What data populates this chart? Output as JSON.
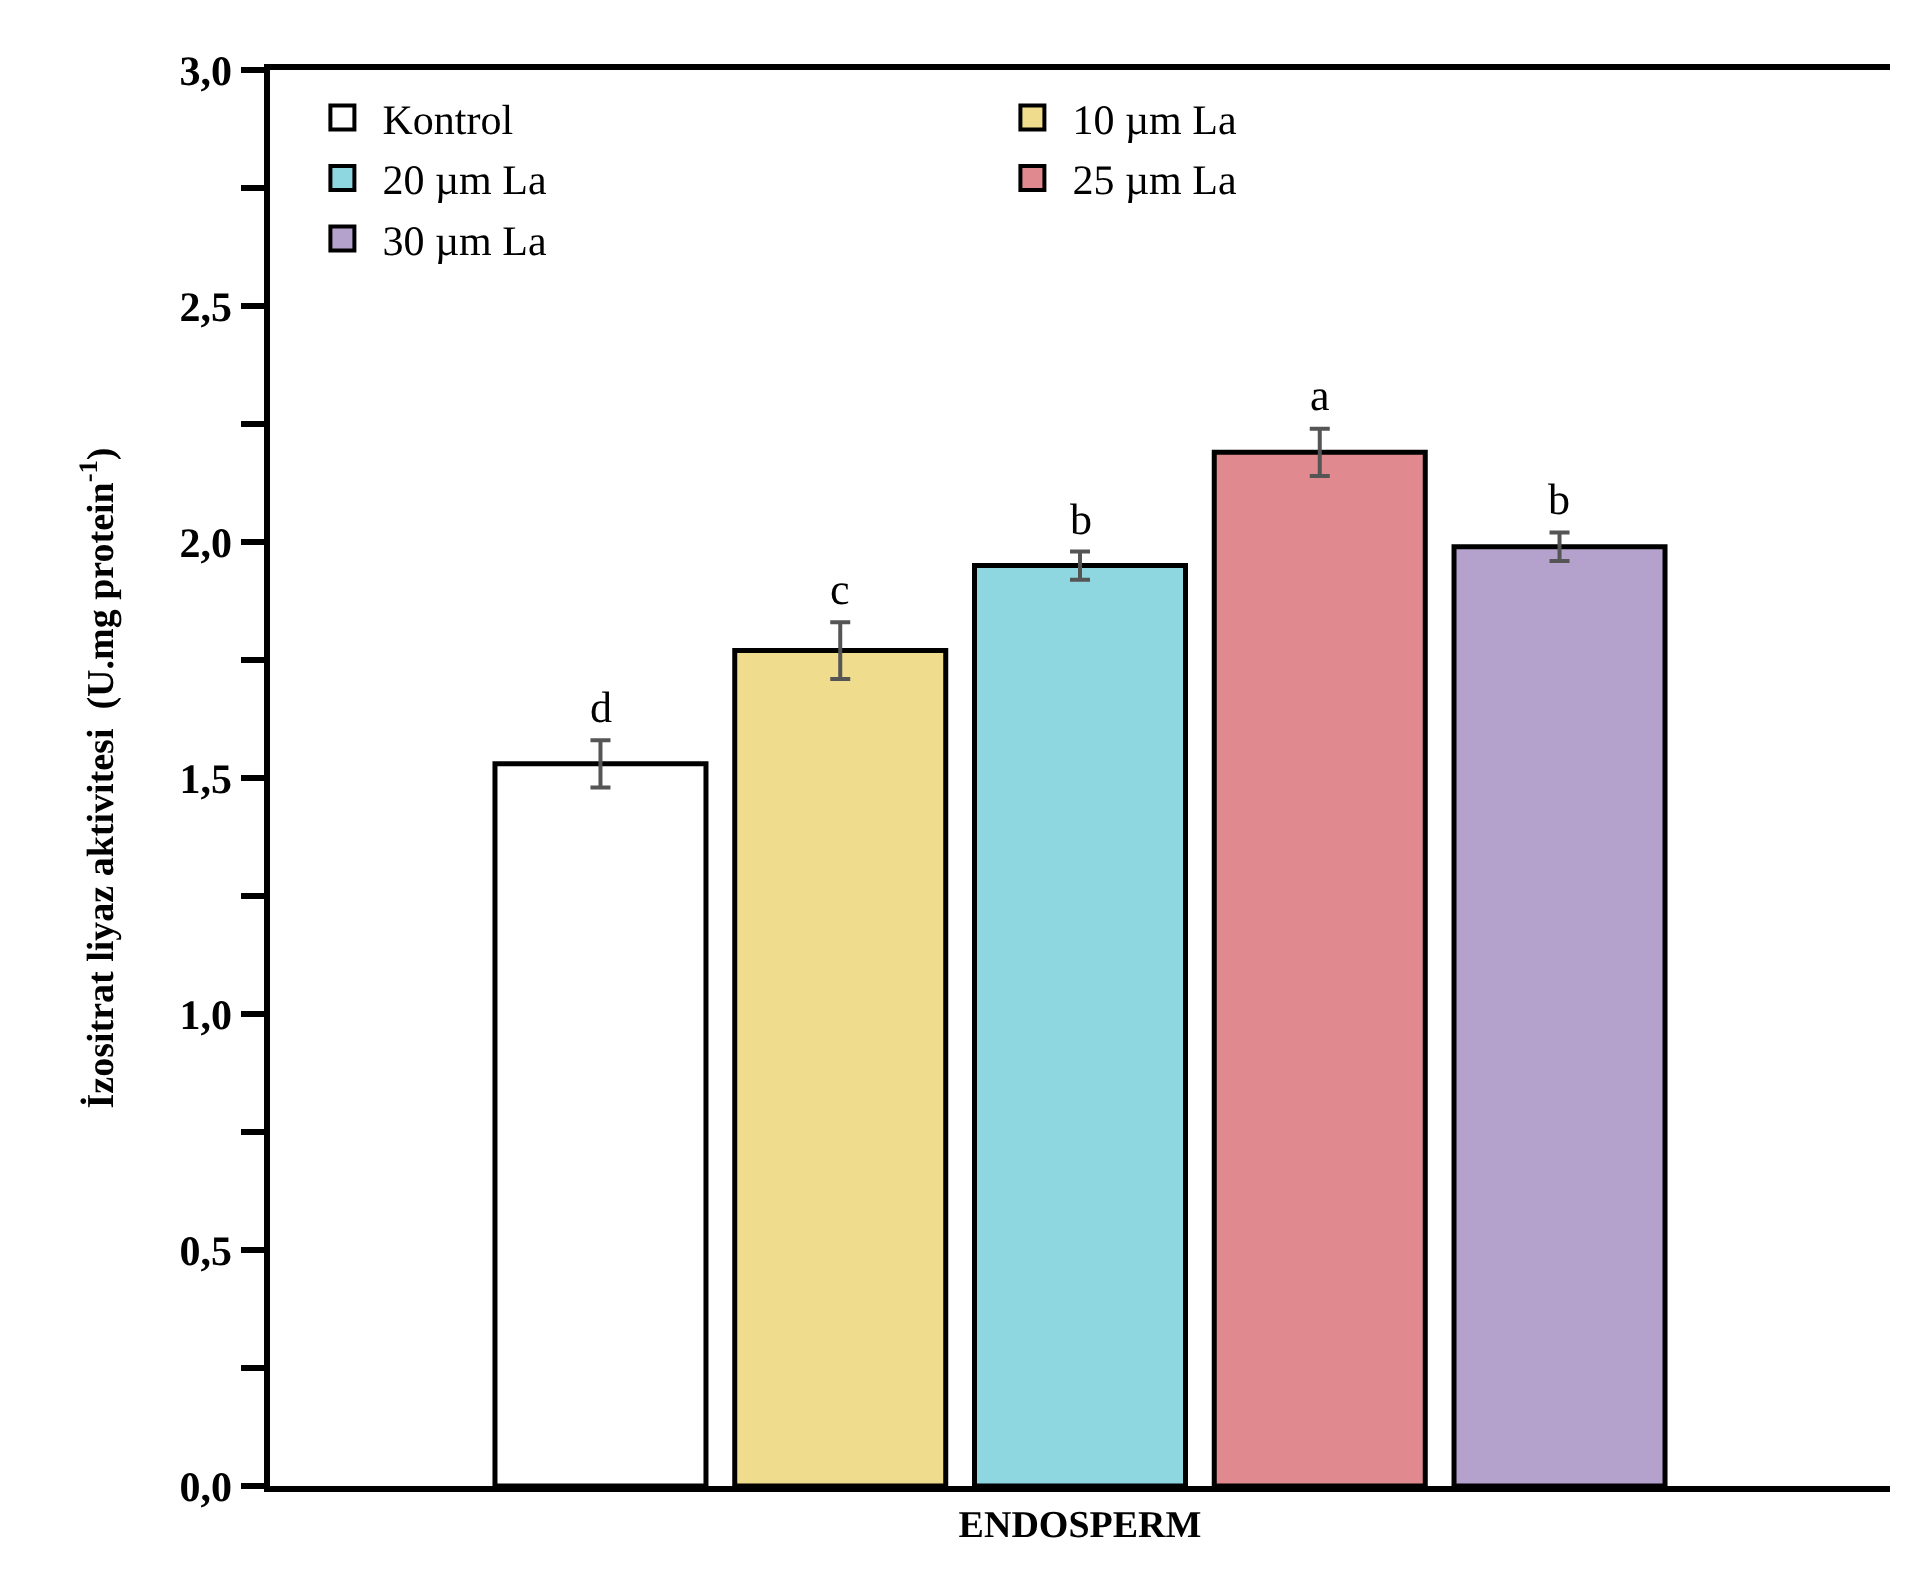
{
  "chart_data": {
    "type": "bar",
    "categories": [
      "ENDOSPERM"
    ],
    "ylabel": "İzositrat liyaz aktivitesi  (U.mg protein$^{-1}$)",
    "series": [
      {
        "name": "Kontrol",
        "color": "#ffffff",
        "values": [
          1.53
        ],
        "errors": [
          0.05
        ],
        "value_labels": [
          "d"
        ]
      },
      {
        "name": "10 µm La",
        "color": "#efdc8c",
        "values": [
          1.77
        ],
        "errors": [
          0.06
        ],
        "value_labels": [
          "c"
        ]
      },
      {
        "name": "20 µm La",
        "color": "#8ed6e0",
        "values": [
          1.95
        ],
        "errors": [
          0.03
        ],
        "value_labels": [
          "b"
        ]
      },
      {
        "name": "25 µm La",
        "color": "#e08a90",
        "values": [
          2.19
        ],
        "errors": [
          0.05
        ],
        "value_labels": [
          "a"
        ]
      },
      {
        "name": "30 µm La",
        "color": "#b4a2cc",
        "values": [
          1.99
        ],
        "errors": [
          0.03
        ],
        "value_labels": [
          "b"
        ]
      }
    ],
    "ylim": [
      0,
      3
    ],
    "yticks": [
      {
        "value": 0,
        "label": "0,0"
      },
      {
        "value": 0.25,
        "label": null
      },
      {
        "value": 0.5,
        "label": "0,5"
      },
      {
        "value": 0.75,
        "label": null
      },
      {
        "value": 1,
        "label": "1,0"
      },
      {
        "value": 1.25,
        "label": null
      },
      {
        "value": 1.5,
        "label": "1,5"
      },
      {
        "value": 1.75,
        "label": null
      },
      {
        "value": 2,
        "label": "2,0"
      },
      {
        "value": 2.25,
        "label": null
      },
      {
        "value": 2.5,
        "label": "2,5"
      },
      {
        "value": 2.75,
        "label": null
      },
      {
        "value": 3,
        "label": "3,0"
      }
    ],
    "legend": "top left"
  }
}
